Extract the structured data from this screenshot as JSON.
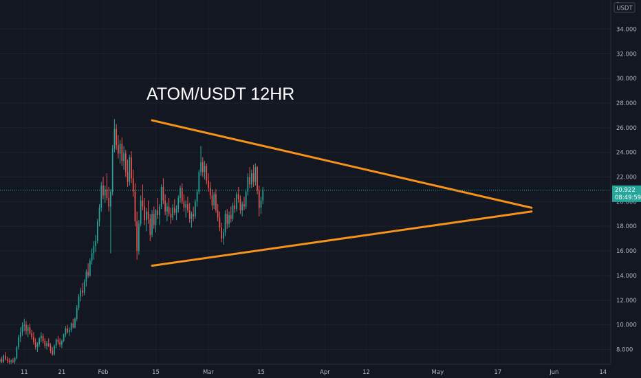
{
  "chart_data": {
    "type": "candlestick",
    "title": "ATOM/USDT 12HR",
    "currency": "USDT",
    "ylim": [
      6.8,
      36.2
    ],
    "y_ticks": [
      "8.000",
      "10.000",
      "12.000",
      "14.000",
      "16.000",
      "18.000",
      "20.000",
      "22.000",
      "24.000",
      "26.000",
      "28.000",
      "30.000",
      "32.000",
      "34.000"
    ],
    "y_tick_top_partial": "3",
    "x_ticks": [
      "11",
      "21",
      "Feb",
      "15",
      "Mar",
      "15",
      "Apr",
      "12",
      "May",
      "17",
      "Jun",
      "14"
    ],
    "last_price": "20.922",
    "countdown": "08:49:59",
    "colors": {
      "background": "#131722",
      "up": "#26a69a",
      "down": "#ef5350",
      "trendline": "#f7931a",
      "price_label_bg": "#26a69a",
      "axis_text": "#b2b5be"
    },
    "trendlines": [
      {
        "name": "upper-resistance",
        "from": {
          "x": "Feb 14",
          "y": 26.6
        },
        "to": {
          "x": "May 26",
          "y": 19.5
        }
      },
      {
        "name": "lower-support",
        "from": {
          "x": "Feb 14",
          "y": 14.8
        },
        "to": {
          "x": "May 26",
          "y": 19.2
        }
      }
    ],
    "candles": [
      [
        7.2,
        7.5,
        6.9,
        7.0
      ],
      [
        7.0,
        7.3,
        6.8,
        7.2
      ],
      [
        7.2,
        7.4,
        6.9,
        7.0
      ],
      [
        7.0,
        7.6,
        6.9,
        7.5
      ],
      [
        7.5,
        7.8,
        7.1,
        7.2
      ],
      [
        7.2,
        7.4,
        6.9,
        7.1
      ],
      [
        7.1,
        7.3,
        6.8,
        7.0
      ],
      [
        7.0,
        7.2,
        6.8,
        7.1
      ],
      [
        7.1,
        7.3,
        6.9,
        7.0
      ],
      [
        7.0,
        7.4,
        6.8,
        7.3
      ],
      [
        7.3,
        8.3,
        7.2,
        8.2
      ],
      [
        8.2,
        9.2,
        8.0,
        9.0
      ],
      [
        9.0,
        9.8,
        8.6,
        9.4
      ],
      [
        9.4,
        10.2,
        9.1,
        9.9
      ],
      [
        9.9,
        10.5,
        9.5,
        10.0
      ],
      [
        10.0,
        10.3,
        9.2,
        9.5
      ],
      [
        9.5,
        10.0,
        9.0,
        9.8
      ],
      [
        9.8,
        10.1,
        9.2,
        9.3
      ],
      [
        9.3,
        9.6,
        8.8,
        9.0
      ],
      [
        9.0,
        9.4,
        8.4,
        8.6
      ],
      [
        8.6,
        8.9,
        8.0,
        8.2
      ],
      [
        8.2,
        8.6,
        7.8,
        8.4
      ],
      [
        8.4,
        9.0,
        8.2,
        8.9
      ],
      [
        8.9,
        9.4,
        8.6,
        9.1
      ],
      [
        9.1,
        9.3,
        8.5,
        8.7
      ],
      [
        8.7,
        8.9,
        8.1,
        8.3
      ],
      [
        8.3,
        8.7,
        8.0,
        8.5
      ],
      [
        8.5,
        8.9,
        8.2,
        8.3
      ],
      [
        8.3,
        8.5,
        7.7,
        7.9
      ],
      [
        7.9,
        8.2,
        7.5,
        7.6
      ],
      [
        7.6,
        8.4,
        7.5,
        8.3
      ],
      [
        8.3,
        8.9,
        8.1,
        8.8
      ],
      [
        8.8,
        9.1,
        8.4,
        8.6
      ],
      [
        8.6,
        8.9,
        8.2,
        8.4
      ],
      [
        8.4,
        8.8,
        8.1,
        8.7
      ],
      [
        8.7,
        9.3,
        8.6,
        9.2
      ],
      [
        9.2,
        9.9,
        9.0,
        9.7
      ],
      [
        9.7,
        10.0,
        9.3,
        9.4
      ],
      [
        9.4,
        9.8,
        9.1,
        9.6
      ],
      [
        9.6,
        10.2,
        9.4,
        10.1
      ],
      [
        10.1,
        10.5,
        9.7,
        9.8
      ],
      [
        9.8,
        10.6,
        9.7,
        10.5
      ],
      [
        10.5,
        11.6,
        10.3,
        11.4
      ],
      [
        11.4,
        12.5,
        11.2,
        12.3
      ],
      [
        12.3,
        13.0,
        11.9,
        12.8
      ],
      [
        12.8,
        13.4,
        12.3,
        12.6
      ],
      [
        12.6,
        13.7,
        12.4,
        13.5
      ],
      [
        13.5,
        14.5,
        13.1,
        14.3
      ],
      [
        14.3,
        15.0,
        13.8,
        14.0
      ],
      [
        14.0,
        15.4,
        13.9,
        15.2
      ],
      [
        15.2,
        16.2,
        14.9,
        15.8
      ],
      [
        15.8,
        16.8,
        15.3,
        16.4
      ],
      [
        16.4,
        17.3,
        15.9,
        16.8
      ],
      [
        16.8,
        18.6,
        16.6,
        18.4
      ],
      [
        18.4,
        19.8,
        18.0,
        19.5
      ],
      [
        19.5,
        21.6,
        19.2,
        21.3
      ],
      [
        21.3,
        22.0,
        20.2,
        20.5
      ],
      [
        20.5,
        21.3,
        19.9,
        21.0
      ],
      [
        21.0,
        22.3,
        20.1,
        20.3
      ],
      [
        20.3,
        21.2,
        19.2,
        19.6
      ],
      [
        19.6,
        21.0,
        15.8,
        20.8
      ],
      [
        20.8,
        24.6,
        20.5,
        24.3
      ],
      [
        24.3,
        26.7,
        24.0,
        25.9
      ],
      [
        25.9,
        26.3,
        24.2,
        24.6
      ],
      [
        24.6,
        25.4,
        23.5,
        23.9
      ],
      [
        23.9,
        25.0,
        23.1,
        24.7
      ],
      [
        24.7,
        25.2,
        22.9,
        23.3
      ],
      [
        23.3,
        24.5,
        22.6,
        23.9
      ],
      [
        23.9,
        24.2,
        22.0,
        22.4
      ],
      [
        22.4,
        23.4,
        21.2,
        21.6
      ],
      [
        21.6,
        23.8,
        21.3,
        23.6
      ],
      [
        23.6,
        24.1,
        21.5,
        21.9
      ],
      [
        21.9,
        22.6,
        20.4,
        20.8
      ],
      [
        20.8,
        21.5,
        18.0,
        18.4
      ],
      [
        18.4,
        19.2,
        15.3,
        16.0
      ],
      [
        16.0,
        18.5,
        15.7,
        18.2
      ],
      [
        18.2,
        20.5,
        18.0,
        20.1
      ],
      [
        20.1,
        21.4,
        19.3,
        19.6
      ],
      [
        19.6,
        20.3,
        18.1,
        18.5
      ],
      [
        18.5,
        19.5,
        17.6,
        19.2
      ],
      [
        19.2,
        20.1,
        18.2,
        18.6
      ],
      [
        18.6,
        19.0,
        16.8,
        17.3
      ],
      [
        17.3,
        19.3,
        17.1,
        19.0
      ],
      [
        19.0,
        19.6,
        17.8,
        18.1
      ],
      [
        18.1,
        19.4,
        17.5,
        19.3
      ],
      [
        19.3,
        20.3,
        18.6,
        18.9
      ],
      [
        18.9,
        19.8,
        18.1,
        19.6
      ],
      [
        19.6,
        21.4,
        19.4,
        21.2
      ],
      [
        21.2,
        21.9,
        19.8,
        20.1
      ],
      [
        20.1,
        20.6,
        18.9,
        19.2
      ],
      [
        19.2,
        19.9,
        18.4,
        19.6
      ],
      [
        19.6,
        20.3,
        18.8,
        19.0
      ],
      [
        19.0,
        19.5,
        18.2,
        18.7
      ],
      [
        18.7,
        19.8,
        18.5,
        19.5
      ],
      [
        19.5,
        20.2,
        18.9,
        19.1
      ],
      [
        19.1,
        19.7,
        18.5,
        19.4
      ],
      [
        19.4,
        20.5,
        19.1,
        20.3
      ],
      [
        20.3,
        21.3,
        19.9,
        21.1
      ],
      [
        21.1,
        21.5,
        19.8,
        20.0
      ],
      [
        20.0,
        20.6,
        19.2,
        19.5
      ],
      [
        19.5,
        20.1,
        18.7,
        19.8
      ],
      [
        19.8,
        20.4,
        19.1,
        19.3
      ],
      [
        19.3,
        19.9,
        18.3,
        18.6
      ],
      [
        18.6,
        19.2,
        17.9,
        19.0
      ],
      [
        19.0,
        19.6,
        18.4,
        18.8
      ],
      [
        18.8,
        20.2,
        18.6,
        20.0
      ],
      [
        20.0,
        21.0,
        19.6,
        20.8
      ],
      [
        20.8,
        22.6,
        20.6,
        22.4
      ],
      [
        22.4,
        24.5,
        22.1,
        23.2
      ],
      [
        23.2,
        23.6,
        22.0,
        22.4
      ],
      [
        22.4,
        23.3,
        21.8,
        22.9
      ],
      [
        22.9,
        23.1,
        21.4,
        21.7
      ],
      [
        21.7,
        22.3,
        20.8,
        21.1
      ],
      [
        21.1,
        21.6,
        20.2,
        20.5
      ],
      [
        20.5,
        21.0,
        19.3,
        19.7
      ],
      [
        19.7,
        20.8,
        19.4,
        20.6
      ],
      [
        20.6,
        21.0,
        19.1,
        19.3
      ],
      [
        19.3,
        19.8,
        18.4,
        18.7
      ],
      [
        18.7,
        19.2,
        17.6,
        17.9
      ],
      [
        17.9,
        18.3,
        16.7,
        17.0
      ],
      [
        17.0,
        17.8,
        16.5,
        17.5
      ],
      [
        17.5,
        19.3,
        17.2,
        19.0
      ],
      [
        19.0,
        19.4,
        17.8,
        18.2
      ],
      [
        18.2,
        19.2,
        17.9,
        18.9
      ],
      [
        18.9,
        19.6,
        18.3,
        18.6
      ],
      [
        18.6,
        19.9,
        18.4,
        19.7
      ],
      [
        19.7,
        20.3,
        19.1,
        19.4
      ],
      [
        19.4,
        20.8,
        19.2,
        20.6
      ],
      [
        20.6,
        21.2,
        19.9,
        20.2
      ],
      [
        20.2,
        20.5,
        19.0,
        19.3
      ],
      [
        19.3,
        20.0,
        18.8,
        19.8
      ],
      [
        19.8,
        20.4,
        19.3,
        19.6
      ],
      [
        19.6,
        21.0,
        19.4,
        20.8
      ],
      [
        20.8,
        22.3,
        20.5,
        22.0
      ],
      [
        22.0,
        22.8,
        21.1,
        21.4
      ],
      [
        21.4,
        22.6,
        21.1,
        22.3
      ],
      [
        22.3,
        23.0,
        21.2,
        21.6
      ],
      [
        21.6,
        23.1,
        21.3,
        22.8
      ],
      [
        22.8,
        22.9,
        20.6,
        20.9
      ],
      [
        20.9,
        21.3,
        18.8,
        19.5
      ],
      [
        19.5,
        20.4,
        19.0,
        20.1
      ],
      [
        20.1,
        21.2,
        19.8,
        20.9
      ]
    ]
  }
}
